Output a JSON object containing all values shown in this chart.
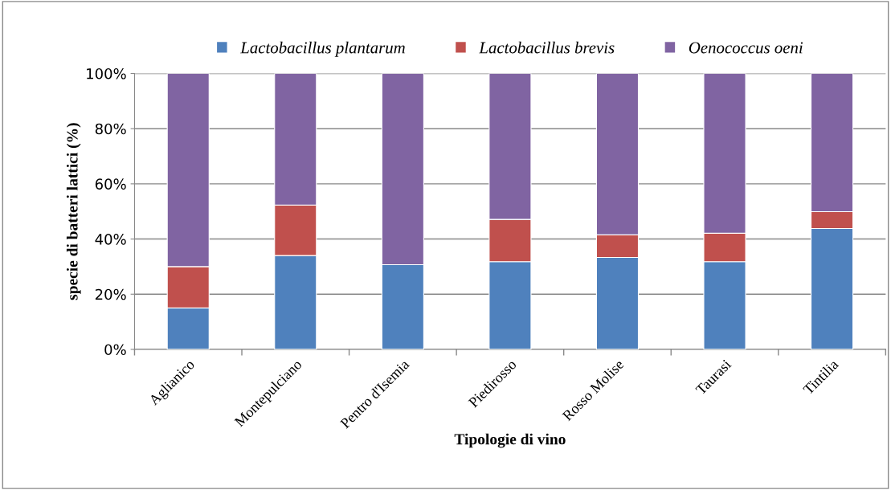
{
  "chart_data": {
    "type": "bar",
    "stacked": true,
    "xlabel": "Tipologie di vino",
    "ylabel": "specie di batteri lattici (%)",
    "categories": [
      "Aglianico",
      "Montepulciano",
      "Pentro d'Isemia",
      "Piedirosso",
      "Rosso Molise",
      "Taurasi",
      "Tintilia"
    ],
    "series": [
      {
        "name": "Lactobacillus plantarum",
        "color": "#4f81bd",
        "values": [
          15,
          34,
          30.7,
          31.8,
          33.3,
          31.8,
          43.8
        ]
      },
      {
        "name": "Lactobacillus brevis",
        "color": "#c0504d",
        "values": [
          15,
          18.3,
          0,
          15.3,
          8.2,
          10.3,
          6.1
        ]
      },
      {
        "name": "Oenococcus oeni",
        "color": "#8064a2",
        "values": [
          70,
          47.7,
          69.3,
          52.9,
          58.5,
          57.9,
          50.1
        ]
      }
    ],
    "ylim": [
      0,
      100
    ],
    "yticks": [
      {
        "value": 0,
        "label": "0%"
      },
      {
        "value": 20,
        "label": "20%"
      },
      {
        "value": 40,
        "label": "40%"
      },
      {
        "value": 60,
        "label": "60%"
      },
      {
        "value": 80,
        "label": "80%"
      },
      {
        "value": 100,
        "label": "100%"
      }
    ],
    "grid": "y",
    "legend": "top"
  }
}
